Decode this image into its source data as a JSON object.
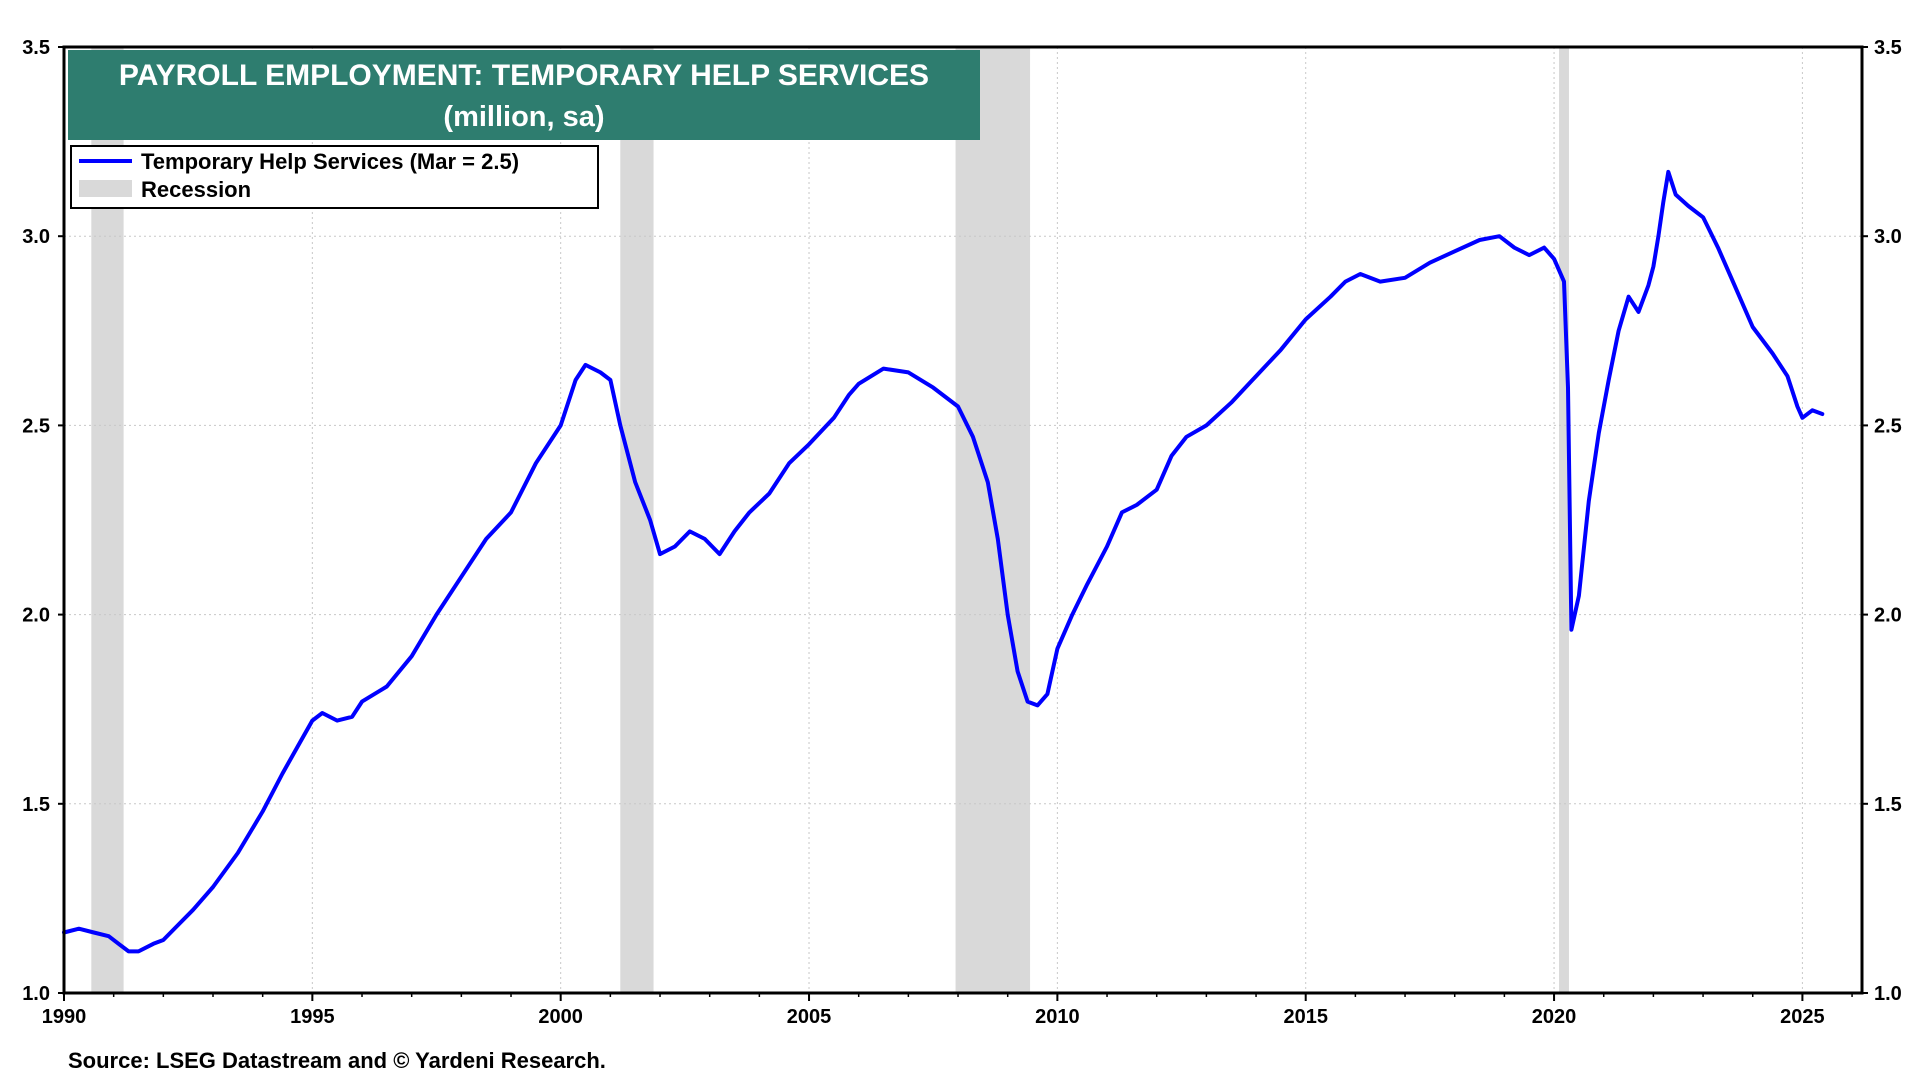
{
  "chart_data": {
    "type": "line",
    "title": "PAYROLL EMPLOYMENT: TEMPORARY HELP SERVICES",
    "subtitle": "(million, sa)",
    "source": "Source: LSEG Datastream and © Yardeni Research.",
    "xlim": [
      1990,
      2026.2
    ],
    "ylim": [
      1.0,
      3.5
    ],
    "x_ticks": [
      1990,
      1995,
      2000,
      2005,
      2010,
      2015,
      2020,
      2025
    ],
    "y_ticks": [
      1.0,
      1.5,
      2.0,
      2.5,
      3.0,
      3.5
    ],
    "y_tick_labels": [
      "1.0",
      "1.5",
      "2.0",
      "2.5",
      "3.0",
      "3.5"
    ],
    "grid": true,
    "legend_position": "top-left",
    "colors": {
      "line": "#0000ff",
      "recession": "#d9d9d9",
      "title_bg": "#2e7d6f",
      "title_text": "#ffffff",
      "grid": "#c8c8c8"
    },
    "recessions": [
      {
        "start": 1990.55,
        "end": 1991.2
      },
      {
        "start": 2001.2,
        "end": 2001.87
      },
      {
        "start": 2007.95,
        "end": 2009.45
      },
      {
        "start": 2020.1,
        "end": 2020.3
      }
    ],
    "series": [
      {
        "name": "Temporary Help Services (Mar = 2.5)",
        "points": [
          [
            1990.0,
            1.16
          ],
          [
            1990.3,
            1.17
          ],
          [
            1990.6,
            1.16
          ],
          [
            1990.9,
            1.15
          ],
          [
            1991.1,
            1.13
          ],
          [
            1991.3,
            1.11
          ],
          [
            1991.5,
            1.11
          ],
          [
            1991.8,
            1.13
          ],
          [
            1992.0,
            1.14
          ],
          [
            1992.3,
            1.18
          ],
          [
            1992.6,
            1.22
          ],
          [
            1993.0,
            1.28
          ],
          [
            1993.5,
            1.37
          ],
          [
            1994.0,
            1.48
          ],
          [
            1994.4,
            1.58
          ],
          [
            1994.7,
            1.65
          ],
          [
            1995.0,
            1.72
          ],
          [
            1995.2,
            1.74
          ],
          [
            1995.5,
            1.72
          ],
          [
            1995.8,
            1.73
          ],
          [
            1996.0,
            1.77
          ],
          [
            1996.5,
            1.81
          ],
          [
            1997.0,
            1.89
          ],
          [
            1997.5,
            2.0
          ],
          [
            1998.0,
            2.1
          ],
          [
            1998.5,
            2.2
          ],
          [
            1999.0,
            2.27
          ],
          [
            1999.5,
            2.4
          ],
          [
            2000.0,
            2.5
          ],
          [
            2000.3,
            2.62
          ],
          [
            2000.5,
            2.66
          ],
          [
            2000.8,
            2.64
          ],
          [
            2001.0,
            2.62
          ],
          [
            2001.2,
            2.5
          ],
          [
            2001.5,
            2.35
          ],
          [
            2001.8,
            2.25
          ],
          [
            2002.0,
            2.16
          ],
          [
            2002.3,
            2.18
          ],
          [
            2002.6,
            2.22
          ],
          [
            2002.9,
            2.2
          ],
          [
            2003.2,
            2.16
          ],
          [
            2003.5,
            2.22
          ],
          [
            2003.8,
            2.27
          ],
          [
            2004.2,
            2.32
          ],
          [
            2004.6,
            2.4
          ],
          [
            2005.0,
            2.45
          ],
          [
            2005.5,
            2.52
          ],
          [
            2005.8,
            2.58
          ],
          [
            2006.0,
            2.61
          ],
          [
            2006.5,
            2.65
          ],
          [
            2007.0,
            2.64
          ],
          [
            2007.5,
            2.6
          ],
          [
            2008.0,
            2.55
          ],
          [
            2008.3,
            2.47
          ],
          [
            2008.6,
            2.35
          ],
          [
            2008.8,
            2.2
          ],
          [
            2009.0,
            2.0
          ],
          [
            2009.2,
            1.85
          ],
          [
            2009.4,
            1.77
          ],
          [
            2009.6,
            1.76
          ],
          [
            2009.8,
            1.79
          ],
          [
            2010.0,
            1.91
          ],
          [
            2010.3,
            2.0
          ],
          [
            2010.6,
            2.08
          ],
          [
            2011.0,
            2.18
          ],
          [
            2011.3,
            2.27
          ],
          [
            2011.6,
            2.29
          ],
          [
            2012.0,
            2.33
          ],
          [
            2012.3,
            2.42
          ],
          [
            2012.6,
            2.47
          ],
          [
            2013.0,
            2.5
          ],
          [
            2013.5,
            2.56
          ],
          [
            2014.0,
            2.63
          ],
          [
            2014.5,
            2.7
          ],
          [
            2015.0,
            2.78
          ],
          [
            2015.5,
            2.84
          ],
          [
            2015.8,
            2.88
          ],
          [
            2016.1,
            2.9
          ],
          [
            2016.5,
            2.88
          ],
          [
            2017.0,
            2.89
          ],
          [
            2017.5,
            2.93
          ],
          [
            2018.0,
            2.96
          ],
          [
            2018.5,
            2.99
          ],
          [
            2018.9,
            3.0
          ],
          [
            2019.2,
            2.97
          ],
          [
            2019.5,
            2.95
          ],
          [
            2019.8,
            2.97
          ],
          [
            2020.0,
            2.94
          ],
          [
            2020.2,
            2.88
          ],
          [
            2020.28,
            2.6
          ],
          [
            2020.35,
            1.96
          ],
          [
            2020.5,
            2.05
          ],
          [
            2020.7,
            2.3
          ],
          [
            2020.9,
            2.48
          ],
          [
            2021.1,
            2.62
          ],
          [
            2021.3,
            2.75
          ],
          [
            2021.5,
            2.84
          ],
          [
            2021.7,
            2.8
          ],
          [
            2021.9,
            2.87
          ],
          [
            2022.0,
            2.92
          ],
          [
            2022.1,
            3.0
          ],
          [
            2022.2,
            3.09
          ],
          [
            2022.3,
            3.17
          ],
          [
            2022.45,
            3.11
          ],
          [
            2022.7,
            3.08
          ],
          [
            2023.0,
            3.05
          ],
          [
            2023.3,
            2.97
          ],
          [
            2023.6,
            2.88
          ],
          [
            2024.0,
            2.76
          ],
          [
            2024.4,
            2.69
          ],
          [
            2024.7,
            2.63
          ],
          [
            2024.9,
            2.55
          ],
          [
            2025.0,
            2.52
          ],
          [
            2025.2,
            2.54
          ],
          [
            2025.4,
            2.53
          ]
        ]
      },
      {
        "name": "Recession"
      }
    ]
  }
}
